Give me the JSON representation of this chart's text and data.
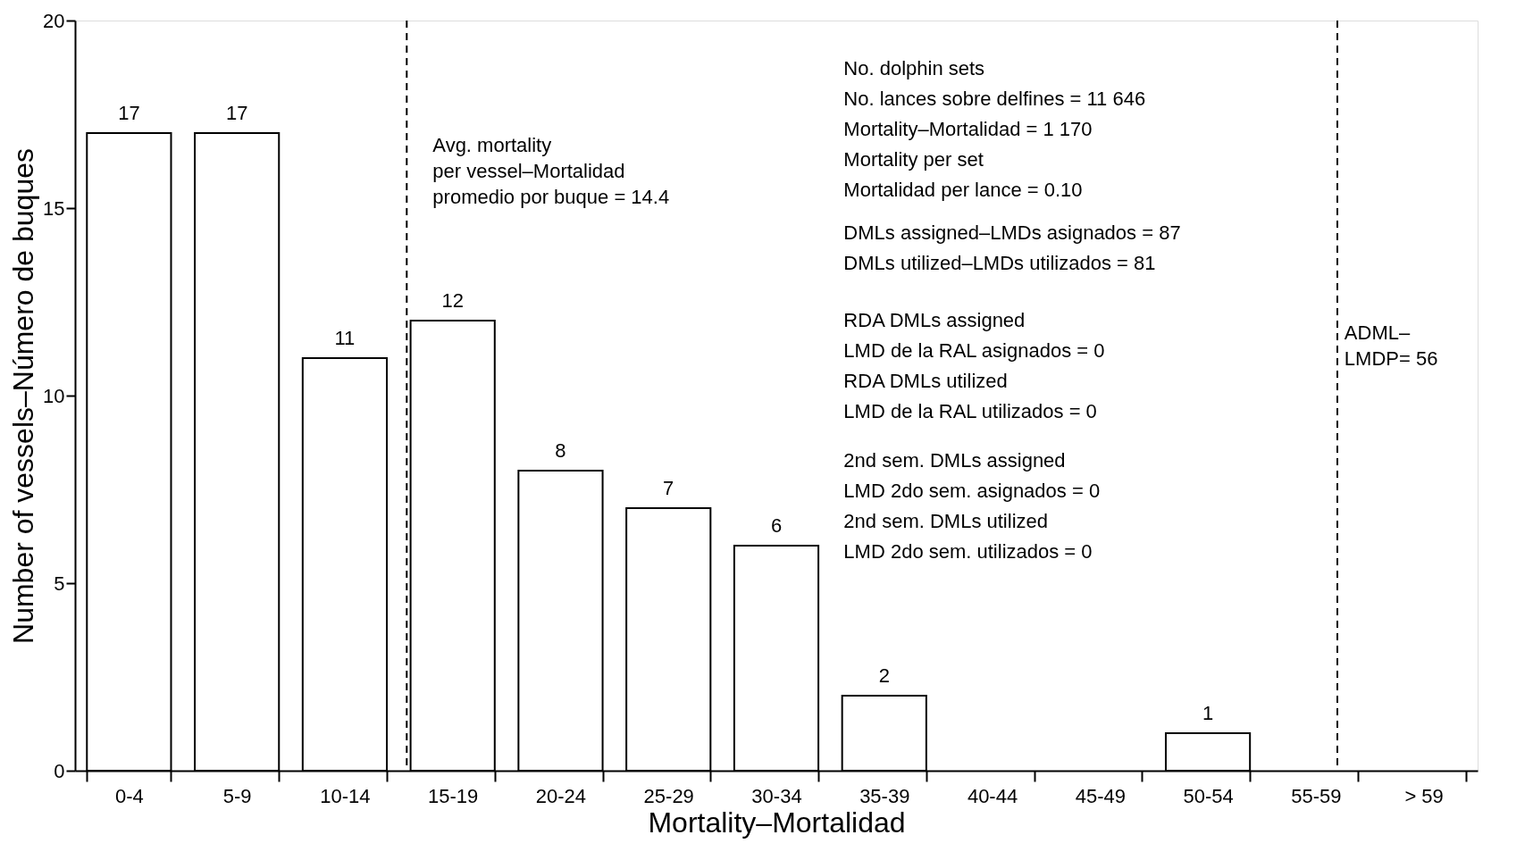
{
  "chart_data": {
    "type": "bar",
    "xlabel": "Mortality–Mortalidad",
    "ylabel": "Number of vessels–Número de buques",
    "categories": [
      "0-4",
      "5-9",
      "10-14",
      "15-19",
      "20-24",
      "25-29",
      "30-34",
      "35-39",
      "40-44",
      "45-49",
      "50-54",
      "55-59",
      "> 59"
    ],
    "values": [
      17,
      17,
      11,
      12,
      8,
      7,
      6,
      2,
      0,
      0,
      1,
      0,
      0
    ],
    "value_labels": [
      "17",
      "17",
      "11",
      "12",
      "8",
      "7",
      "6",
      "2",
      null,
      null,
      "1",
      null,
      null
    ],
    "color": "#ffffff",
    "ylim": [
      0,
      20
    ],
    "yticks": [
      0,
      5,
      10,
      15,
      20
    ],
    "grid": false,
    "annotations": [
      "Avg. mortality\nper vessel–Mortalidad\npromedio por buque = 14.4",
      "ADML–\nLMDP= 56",
      "No. dolphin sets\nNo. lances sobre delfines = 11 646\nMortality–Mortalidad = 1 170\nMortality per set\nMortalidad per lance = 0.10",
      "DMLs assigned–LMDs asignados = 87\nDMLs utilized–LMDs utilizados =  81",
      "RDA DMLs assigned\nLMD de la RAL asignados  = 0\nRDA DMLs utilized\nLMD de la RAL utilizados = 0",
      "2nd sem. DMLs assigned\nLMD 2do sem. asignados = 0\n2nd sem. DMLs utilized\nLMD 2do sem. utilizados =  0"
    ]
  }
}
